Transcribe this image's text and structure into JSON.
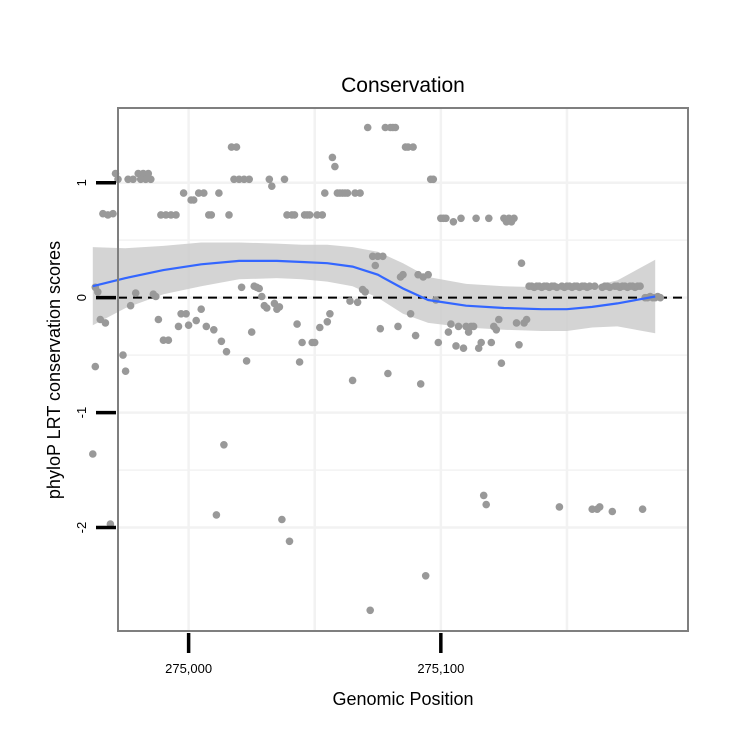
{
  "chart_data": {
    "type": "scatter",
    "title": "Conservation",
    "xlabel": "Genomic Position",
    "ylabel": "phyloP LRT conservation scores",
    "xlim": [
      274972,
      275198
    ],
    "ylim": [
      -2.9,
      1.65
    ],
    "x_ticks": [
      275000,
      275100
    ],
    "x_tick_labels": [
      "275,000",
      "275,100"
    ],
    "x_minor_grid": [
      274950,
      275050,
      275150
    ],
    "y_ticks": [
      -2,
      -1,
      0,
      1
    ],
    "y_tick_labels": [
      "-2",
      "-1",
      "0",
      "1"
    ],
    "grid": true,
    "legend": "none",
    "reference_line": {
      "y": 0,
      "style": "dashed",
      "color": "#000000"
    },
    "colors": {
      "points": "#999999",
      "smooth": "#3366ff",
      "band": "#cccccc",
      "panel_border": "#7f7f7f",
      "grid": "#f2f2f2"
    },
    "smooth": {
      "x": [
        274962,
        274975,
        274990,
        275005,
        275020,
        275035,
        275045,
        275055,
        275065,
        275075,
        275085,
        275095,
        275110,
        275125,
        275140,
        275150,
        275160,
        275170,
        275185
      ],
      "y": [
        0.1,
        0.17,
        0.24,
        0.29,
        0.32,
        0.32,
        0.31,
        0.3,
        0.27,
        0.2,
        0.08,
        -0.02,
        -0.07,
        -0.09,
        -0.1,
        -0.1,
        -0.08,
        -0.05,
        0.01
      ],
      "upper": [
        0.44,
        0.43,
        0.45,
        0.48,
        0.48,
        0.47,
        0.46,
        0.46,
        0.44,
        0.4,
        0.3,
        0.18,
        0.12,
        0.1,
        0.09,
        0.09,
        0.1,
        0.15,
        0.33
      ],
      "lower": [
        -0.24,
        -0.09,
        0.03,
        0.1,
        0.16,
        0.17,
        0.16,
        0.14,
        0.1,
        0.0,
        -0.14,
        -0.22,
        -0.26,
        -0.28,
        -0.29,
        -0.29,
        -0.26,
        -0.25,
        -0.31
      ]
    },
    "points": [
      [
        274963,
        0.09
      ],
      [
        274963,
        -0.6
      ],
      [
        274962,
        -1.36
      ],
      [
        274964,
        0.05
      ],
      [
        274965,
        -0.19
      ],
      [
        274966,
        0.73
      ],
      [
        274967,
        -0.22
      ],
      [
        274968,
        0.72
      ],
      [
        274969,
        -1.97
      ],
      [
        274970,
        0.73
      ],
      [
        274971,
        1.08
      ],
      [
        274972,
        1.03
      ],
      [
        274974,
        -0.5
      ],
      [
        274975,
        -0.64
      ],
      [
        274976,
        1.03
      ],
      [
        274977,
        -0.07
      ],
      [
        274978,
        1.03
      ],
      [
        274979,
        0.04
      ],
      [
        274980,
        1.08
      ],
      [
        274981,
        1.03
      ],
      [
        274982,
        1.08
      ],
      [
        274983,
        1.03
      ],
      [
        274984,
        1.08
      ],
      [
        274985,
        1.03
      ],
      [
        274986,
        0.03
      ],
      [
        274987,
        0.01
      ],
      [
        274988,
        -0.19
      ],
      [
        274989,
        0.72
      ],
      [
        274990,
        -0.37
      ],
      [
        274991,
        0.72
      ],
      [
        274992,
        -0.37
      ],
      [
        274993,
        0.72
      ],
      [
        274995,
        0.72
      ],
      [
        274996,
        -0.25
      ],
      [
        274997,
        -0.14
      ],
      [
        274998,
        0.91
      ],
      [
        274999,
        -0.14
      ],
      [
        275000,
        -0.24
      ],
      [
        275001,
        0.85
      ],
      [
        275002,
        0.85
      ],
      [
        275003,
        -0.2
      ],
      [
        275004,
        0.91
      ],
      [
        275005,
        -0.1
      ],
      [
        275006,
        0.91
      ],
      [
        275007,
        -0.25
      ],
      [
        275008,
        0.72
      ],
      [
        275009,
        0.72
      ],
      [
        275010,
        -0.28
      ],
      [
        275011,
        -1.89
      ],
      [
        275012,
        0.91
      ],
      [
        275013,
        -0.38
      ],
      [
        275014,
        -1.28
      ],
      [
        275015,
        -0.47
      ],
      [
        275016,
        0.72
      ],
      [
        275017,
        1.31
      ],
      [
        275018,
        1.03
      ],
      [
        275019,
        1.31
      ],
      [
        275020,
        1.03
      ],
      [
        275021,
        0.09
      ],
      [
        275022,
        1.03
      ],
      [
        275023,
        -0.55
      ],
      [
        275024,
        1.03
      ],
      [
        275025,
        -0.3
      ],
      [
        275026,
        0.1
      ],
      [
        275027,
        0.09
      ],
      [
        275028,
        0.08
      ],
      [
        275029,
        0.01
      ],
      [
        275030,
        -0.07
      ],
      [
        275031,
        -0.09
      ],
      [
        275032,
        1.03
      ],
      [
        275033,
        0.97
      ],
      [
        275034,
        -0.05
      ],
      [
        275035,
        -0.1
      ],
      [
        275036,
        -0.08
      ],
      [
        275037,
        -1.93
      ],
      [
        275038,
        1.03
      ],
      [
        275039,
        0.72
      ],
      [
        275040,
        -2.12
      ],
      [
        275041,
        0.72
      ],
      [
        275042,
        0.72
      ],
      [
        275043,
        -0.23
      ],
      [
        275044,
        -0.56
      ],
      [
        275045,
        -0.39
      ],
      [
        275046,
        0.72
      ],
      [
        275047,
        0.72
      ],
      [
        275048,
        0.72
      ],
      [
        275049,
        -0.39
      ],
      [
        275050,
        -0.39
      ],
      [
        275051,
        0.72
      ],
      [
        275052,
        -0.26
      ],
      [
        275053,
        0.72
      ],
      [
        275054,
        0.91
      ],
      [
        275055,
        -0.21
      ],
      [
        275056,
        -0.14
      ],
      [
        275057,
        1.22
      ],
      [
        275058,
        1.14
      ],
      [
        275059,
        0.91
      ],
      [
        275060,
        0.91
      ],
      [
        275061,
        0.91
      ],
      [
        275062,
        0.91
      ],
      [
        275063,
        0.91
      ],
      [
        275064,
        -0.03
      ],
      [
        275065,
        -0.72
      ],
      [
        275066,
        0.91
      ],
      [
        275067,
        -0.04
      ],
      [
        275068,
        0.91
      ],
      [
        275069,
        0.07
      ],
      [
        275070,
        0.05
      ],
      [
        275071,
        1.48
      ],
      [
        275072,
        -2.72
      ],
      [
        275073,
        0.36
      ],
      [
        275074,
        0.28
      ],
      [
        275075,
        0.36
      ],
      [
        275076,
        -0.27
      ],
      [
        275077,
        0.36
      ],
      [
        275078,
        1.48
      ],
      [
        275079,
        -0.66
      ],
      [
        275080,
        1.48
      ],
      [
        275081,
        1.48
      ],
      [
        275082,
        1.48
      ],
      [
        275083,
        -0.25
      ],
      [
        275084,
        0.18
      ],
      [
        275085,
        0.2
      ],
      [
        275086,
        1.31
      ],
      [
        275087,
        1.31
      ],
      [
        275088,
        -0.14
      ],
      [
        275089,
        1.31
      ],
      [
        275090,
        -0.33
      ],
      [
        275091,
        0.2
      ],
      [
        275092,
        -0.75
      ],
      [
        275093,
        0.18
      ],
      [
        275094,
        -2.42
      ],
      [
        275095,
        0.2
      ],
      [
        275096,
        1.03
      ],
      [
        275097,
        1.03
      ],
      [
        275098,
        -0.02
      ],
      [
        275099,
        -0.39
      ],
      [
        275100,
        0.69
      ],
      [
        275101,
        0.69
      ],
      [
        275102,
        0.69
      ],
      [
        275103,
        -0.3
      ],
      [
        275104,
        -0.23
      ],
      [
        275105,
        0.66
      ],
      [
        275106,
        -0.42
      ],
      [
        275107,
        -0.25
      ],
      [
        275108,
        0.69
      ],
      [
        275109,
        -0.44
      ],
      [
        275110,
        -0.25
      ],
      [
        275111,
        -0.3
      ],
      [
        275112,
        -0.25
      ],
      [
        275113,
        -0.25
      ],
      [
        275114,
        0.69
      ],
      [
        275115,
        -0.44
      ],
      [
        275116,
        -0.39
      ],
      [
        275117,
        -1.72
      ],
      [
        275118,
        -1.8
      ],
      [
        275119,
        0.69
      ],
      [
        275120,
        -0.39
      ],
      [
        275121,
        -0.25
      ],
      [
        275122,
        -0.28
      ],
      [
        275123,
        -0.19
      ],
      [
        275124,
        -0.57
      ],
      [
        275125,
        0.69
      ],
      [
        275126,
        0.66
      ],
      [
        275127,
        0.69
      ],
      [
        275128,
        0.66
      ],
      [
        275129,
        0.69
      ],
      [
        275130,
        -0.22
      ],
      [
        275131,
        -0.41
      ],
      [
        275132,
        0.3
      ],
      [
        275133,
        -0.22
      ],
      [
        275134,
        -0.19
      ],
      [
        275135,
        0.1
      ],
      [
        275136,
        0.1
      ],
      [
        275137,
        0.09
      ],
      [
        275138,
        0.1
      ],
      [
        275139,
        0.1
      ],
      [
        275140,
        0.09
      ],
      [
        275141,
        0.1
      ],
      [
        275142,
        0.1
      ],
      [
        275143,
        0.09
      ],
      [
        275144,
        0.1
      ],
      [
        275145,
        0.1
      ],
      [
        275146,
        0.09
      ],
      [
        275147,
        -1.82
      ],
      [
        275148,
        0.1
      ],
      [
        275149,
        0.09
      ],
      [
        275150,
        0.1
      ],
      [
        275151,
        0.1
      ],
      [
        275152,
        0.09
      ],
      [
        275153,
        0.1
      ],
      [
        275154,
        0.1
      ],
      [
        275155,
        0.09
      ],
      [
        275156,
        0.1
      ],
      [
        275157,
        0.1
      ],
      [
        275158,
        0.09
      ],
      [
        275159,
        0.1
      ],
      [
        275160,
        -1.84
      ],
      [
        275161,
        0.1
      ],
      [
        275162,
        -1.84
      ],
      [
        275163,
        -1.82
      ],
      [
        275164,
        0.09
      ],
      [
        275165,
        0.1
      ],
      [
        275166,
        0.1
      ],
      [
        275167,
        0.09
      ],
      [
        275168,
        -1.86
      ],
      [
        275169,
        0.1
      ],
      [
        275170,
        0.1
      ],
      [
        275171,
        0.09
      ],
      [
        275172,
        0.1
      ],
      [
        275173,
        0.1
      ],
      [
        275174,
        0.09
      ],
      [
        275175,
        0.1
      ],
      [
        275176,
        0.1
      ],
      [
        275177,
        0.09
      ],
      [
        275178,
        0.1
      ],
      [
        275179,
        0.1
      ],
      [
        275180,
        -1.84
      ],
      [
        275181,
        0.0
      ],
      [
        275182,
        0.0
      ],
      [
        275183,
        0.01
      ],
      [
        275184,
        0.0
      ],
      [
        275185,
        0.0
      ],
      [
        275186,
        0.01
      ],
      [
        275187,
        0.0
      ]
    ]
  }
}
